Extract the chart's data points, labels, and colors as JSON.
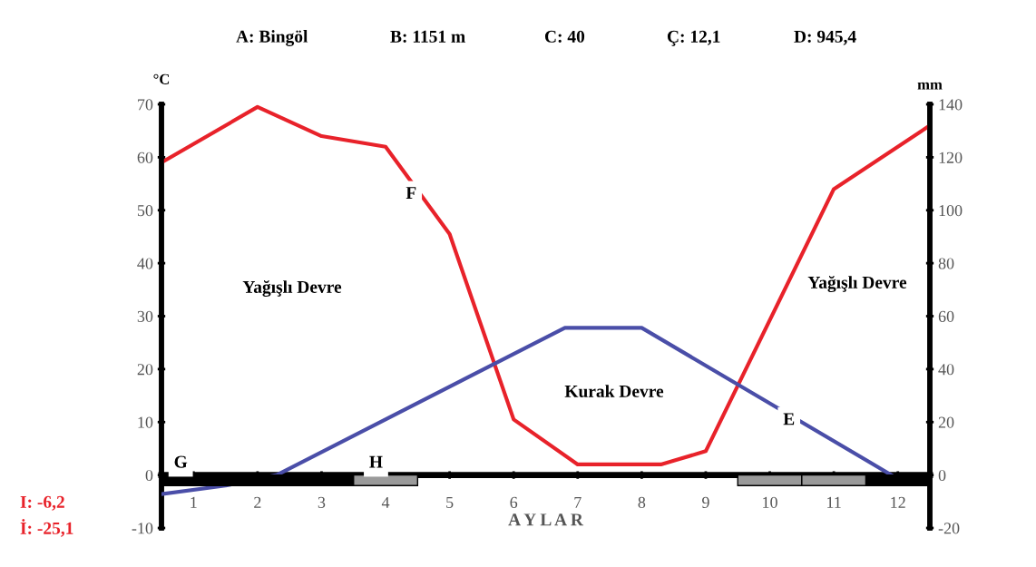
{
  "chart_data": {
    "type": "line",
    "xlabel": "A Y L A R",
    "ylabel": "°C",
    "y2label": "mm",
    "xlim": [
      0.5,
      12.5
    ],
    "xticks": [
      1,
      2,
      3,
      4,
      5,
      6,
      7,
      8,
      9,
      10,
      11,
      12
    ],
    "ylim": [
      -10,
      70
    ],
    "yticks": [
      -10,
      0,
      10,
      20,
      30,
      40,
      50,
      60,
      70
    ],
    "y2lim": [
      -20,
      140
    ],
    "y2ticks": [
      -20,
      0,
      20,
      40,
      60,
      80,
      100,
      120,
      140
    ],
    "grid": false,
    "legend": false,
    "marker": "none",
    "line_style": "solid",
    "series": [
      {
        "color": "#e8222a",
        "axis": "y2",
        "x": [
          0.5,
          2,
          3,
          4,
          5,
          6,
          7,
          8.3,
          9,
          11,
          12.5
        ],
        "values": [
          118,
          139,
          128,
          124,
          91,
          21,
          4,
          4,
          9,
          108,
          132
        ]
      },
      {
        "color": "#4a4ea8",
        "x": [
          0.5,
          1.5,
          2.3,
          6.8,
          8,
          11.9
        ],
        "values": [
          -3.6,
          -2,
          0,
          27.8,
          27.8,
          0
        ]
      },
      {
        "type": "bar",
        "color": "#000000",
        "x": [
          1,
          2,
          3,
          12
        ],
        "values": [
          -2,
          -2,
          -2,
          -2
        ]
      },
      {
        "type": "bar",
        "color": "#9a9a9a",
        "x": [
          4,
          10,
          11
        ],
        "values": [
          -2,
          -2,
          -2
        ]
      }
    ],
    "annotations": [
      "A: Bingöl",
      "B: 1151 m",
      "C: 40",
      "Ç: 12,1",
      "D: 945,4",
      "I: -6,2",
      "İ: -25,1",
      "Yağışlı Devre",
      "Kurak Devre",
      "Yağışlı Devre",
      {
        "text": "F",
        "x": 4.4,
        "y": 53
      },
      {
        "text": "E",
        "x": 10.3,
        "y": 10.3
      },
      {
        "text": "G",
        "x": 0.8,
        "y": 2.2
      },
      {
        "text": "H",
        "x": 3.85,
        "y": 2.2
      }
    ]
  }
}
